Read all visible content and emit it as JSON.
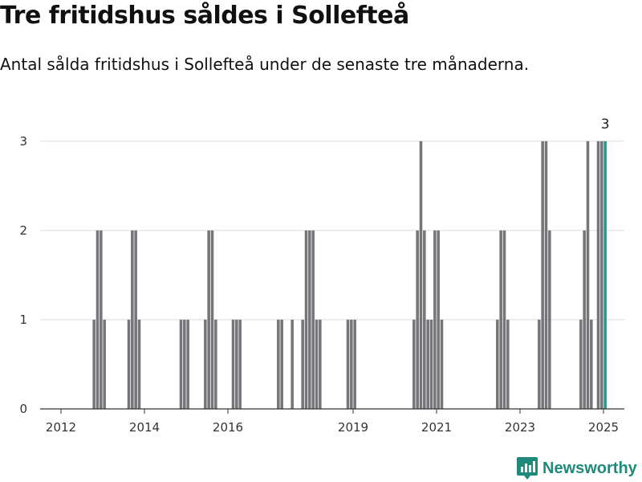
{
  "chart_data": {
    "type": "bar",
    "title": "Tre fritidshus såldes i Sollefteå",
    "subtitle": "Antal sålda fritidshus i Sollefteå under de senaste tre månaderna.",
    "xlabel": "",
    "ylabel": "",
    "x_range": [
      "2011-07",
      "2025-06"
    ],
    "ylim": [
      0,
      3.25
    ],
    "yticks": [
      0,
      1,
      2,
      3
    ],
    "xticks": [
      "2012",
      "2014",
      "2016",
      "2019",
      "2021",
      "2023",
      "2025"
    ],
    "grid": true,
    "highlight_color": "#1a9d8f",
    "bar_color": "#76767a",
    "annotation": {
      "month": "2025-01",
      "label": "3"
    },
    "months": [
      "2012-10",
      "2012-11",
      "2012-12",
      "2013-01",
      "2013-08",
      "2013-09",
      "2013-10",
      "2013-11",
      "2014-11",
      "2014-12",
      "2015-01",
      "2015-06",
      "2015-07",
      "2015-08",
      "2015-09",
      "2016-02",
      "2016-03",
      "2016-04",
      "2017-03",
      "2017-04",
      "2017-07",
      "2017-10",
      "2017-11",
      "2017-12",
      "2018-01",
      "2018-02",
      "2018-03",
      "2018-11",
      "2018-12",
      "2019-01",
      "2020-06",
      "2020-07",
      "2020-08",
      "2020-09",
      "2020-10",
      "2020-11",
      "2020-12",
      "2021-01",
      "2021-02",
      "2022-06",
      "2022-07",
      "2022-08",
      "2022-09",
      "2023-06",
      "2023-07",
      "2023-08",
      "2023-09",
      "2024-06",
      "2024-07",
      "2024-08",
      "2024-09",
      "2024-11",
      "2024-12",
      "2025-01"
    ],
    "values": [
      1,
      2,
      2,
      1,
      1,
      2,
      2,
      1,
      1,
      1,
      1,
      1,
      2,
      2,
      1,
      1,
      1,
      1,
      1,
      1,
      1,
      1,
      2,
      2,
      2,
      1,
      1,
      1,
      1,
      1,
      1,
      2,
      3,
      2,
      1,
      1,
      2,
      2,
      1,
      1,
      2,
      2,
      1,
      1,
      3,
      3,
      2,
      1,
      2,
      3,
      1,
      3,
      3,
      3
    ]
  },
  "brand": {
    "name": "Newsworthy",
    "icon": "newsworthy-logo-icon"
  }
}
